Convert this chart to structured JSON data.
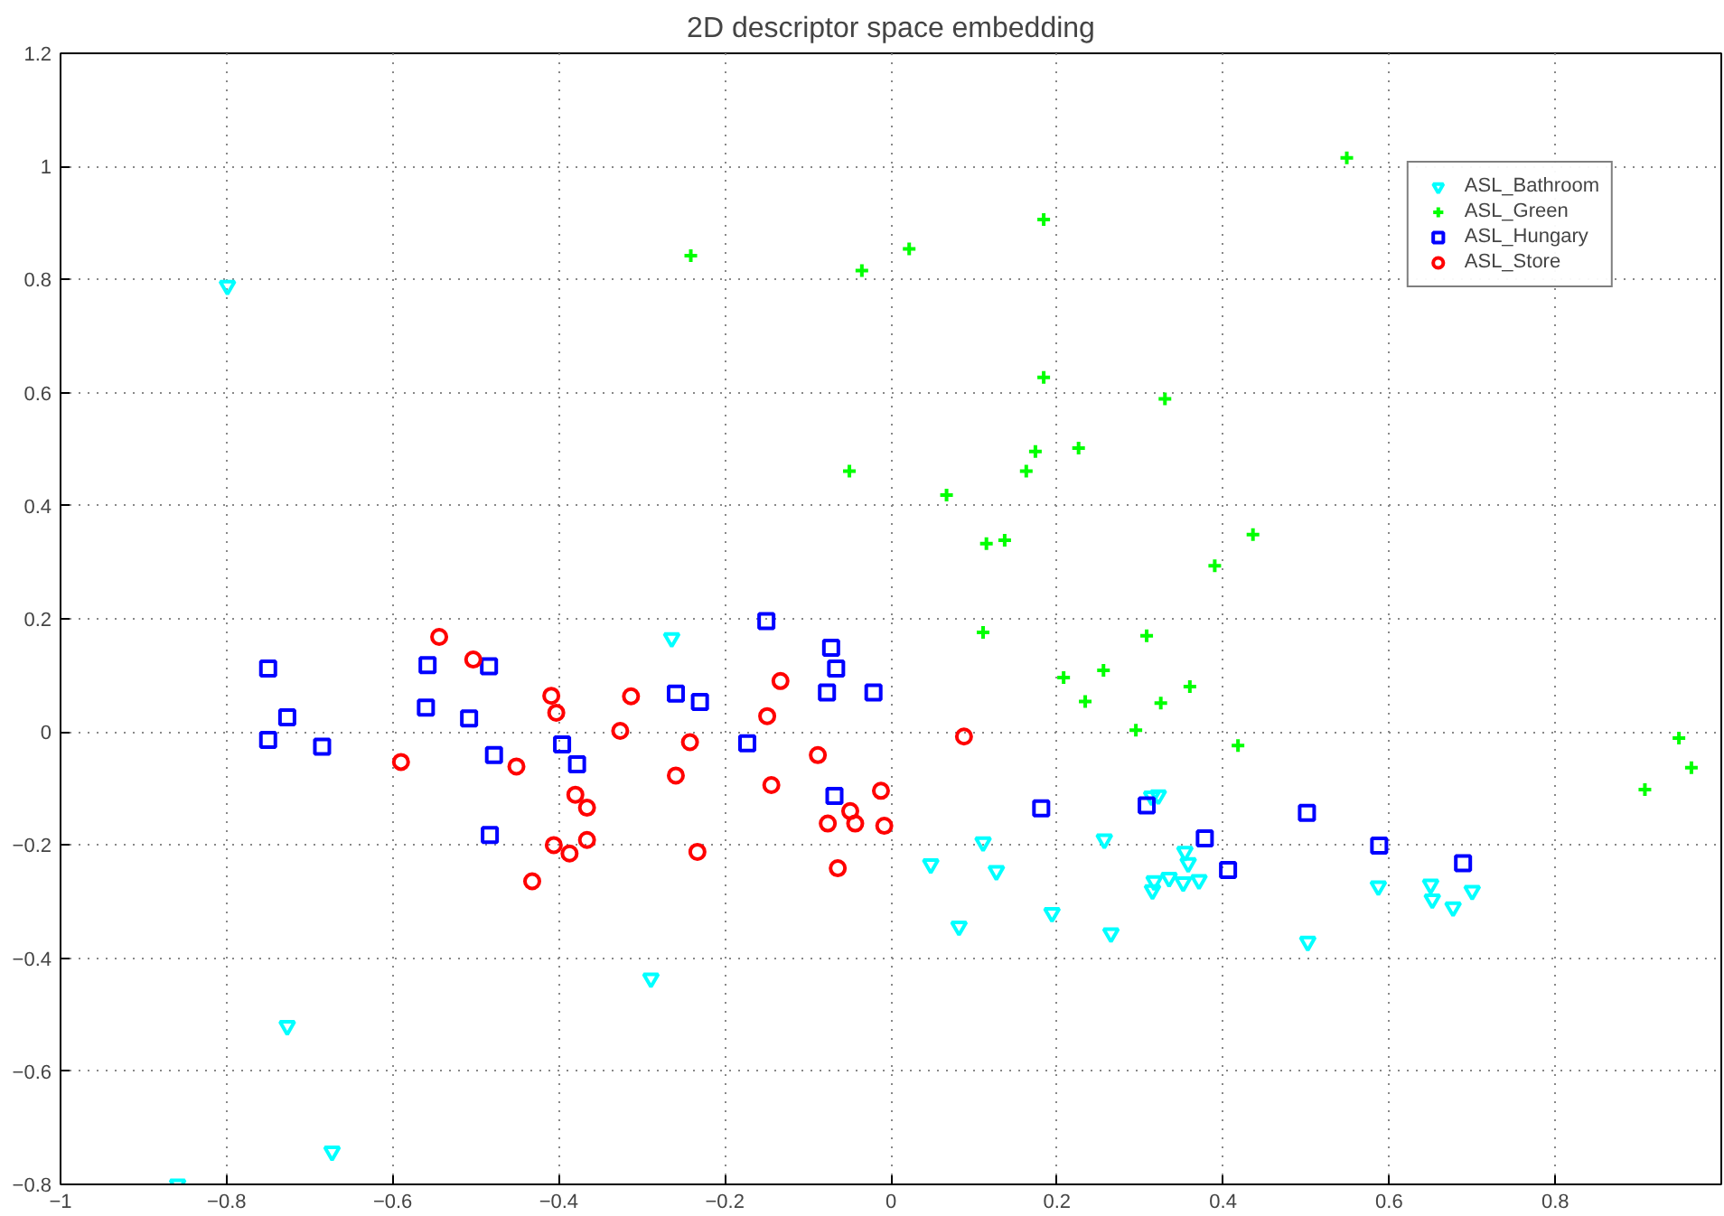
{
  "chart_data": {
    "type": "scatter",
    "title": "2D descriptor space embedding",
    "xlim": [
      -1,
      1
    ],
    "ylim": [
      -0.8,
      1.2
    ],
    "xticks": [
      -1,
      -0.8,
      -0.6,
      -0.4,
      -0.2,
      0,
      0.2,
      0.4,
      0.6,
      0.8
    ],
    "yticks": [
      -0.8,
      -0.6,
      -0.4,
      -0.2,
      0,
      0.2,
      0.4,
      0.6,
      0.8,
      1,
      1.2
    ],
    "grid": true,
    "legend": "top right",
    "series": [
      {
        "name": "ASL_Bathroom",
        "color": "#00ffff",
        "marker": "triangle",
        "x": [
          -0.799,
          -0.264,
          -0.289,
          -0.727,
          -0.673,
          -0.859,
          0.048,
          0.111,
          0.127,
          0.082,
          0.194,
          0.257,
          0.265,
          0.314,
          0.322,
          0.354,
          0.358,
          0.317,
          0.315,
          0.335,
          0.352,
          0.371,
          0.502,
          0.587,
          0.65,
          0.652,
          0.677,
          0.7
        ],
        "values": [
          0.789,
          0.166,
          -0.436,
          -0.52,
          -0.742,
          -0.8,
          -0.234,
          -0.195,
          -0.246,
          -0.344,
          -0.32,
          -0.19,
          -0.356,
          -0.114,
          -0.112,
          -0.212,
          -0.232,
          -0.264,
          -0.28,
          -0.258,
          -0.266,
          -0.262,
          -0.371,
          -0.273,
          -0.27,
          -0.296,
          -0.31,
          -0.281
        ]
      },
      {
        "name": "ASL_Green",
        "color": "#00ff00",
        "marker": "cross",
        "x": [
          -0.241,
          -0.035,
          0.022,
          0.184,
          0.184,
          0.33,
          0.174,
          0.226,
          0.163,
          -0.05,
          0.067,
          0.115,
          0.137,
          0.436,
          0.39,
          0.111,
          0.308,
          0.256,
          0.208,
          0.36,
          0.234,
          0.325,
          0.295,
          0.418,
          0.549,
          0.949,
          0.964,
          0.908
        ],
        "values": [
          0.842,
          0.816,
          0.854,
          0.906,
          0.627,
          0.589,
          0.496,
          0.502,
          0.461,
          0.461,
          0.419,
          0.333,
          0.339,
          0.349,
          0.294,
          0.176,
          0.17,
          0.109,
          0.096,
          0.08,
          0.054,
          0.051,
          0.003,
          -0.024,
          1.015,
          -0.011,
          -0.063,
          -0.102
        ]
      },
      {
        "name": "ASL_Hungary",
        "color": "#0000ff",
        "marker": "square",
        "x": [
          -0.75,
          -0.727,
          -0.75,
          -0.685,
          -0.558,
          -0.56,
          -0.508,
          -0.484,
          -0.478,
          -0.483,
          -0.396,
          -0.378,
          -0.259,
          -0.23,
          -0.173,
          -0.15,
          -0.072,
          -0.066,
          -0.077,
          -0.021,
          -0.068,
          0.181,
          0.308,
          0.378,
          0.406,
          0.501,
          0.588,
          0.689
        ],
        "values": [
          0.112,
          0.026,
          -0.014,
          -0.026,
          0.118,
          0.043,
          0.024,
          0.116,
          -0.041,
          -0.182,
          -0.022,
          -0.057,
          0.068,
          0.053,
          -0.02,
          0.196,
          0.149,
          0.112,
          0.07,
          0.07,
          -0.113,
          -0.135,
          -0.13,
          -0.188,
          -0.244,
          -0.143,
          -0.201,
          -0.232
        ]
      },
      {
        "name": "ASL_Store",
        "color": "#ff0000",
        "marker": "circle",
        "x": [
          -0.544,
          -0.503,
          -0.409,
          -0.403,
          -0.313,
          -0.326,
          -0.242,
          -0.259,
          -0.59,
          -0.451,
          -0.38,
          -0.366,
          -0.406,
          -0.387,
          -0.366,
          -0.233,
          -0.432,
          -0.133,
          -0.149,
          -0.088,
          -0.144,
          -0.012,
          -0.049,
          -0.076,
          -0.043,
          -0.008,
          -0.064,
          0.088
        ],
        "values": [
          0.168,
          0.128,
          0.064,
          0.034,
          0.063,
          0.002,
          -0.018,
          -0.077,
          -0.053,
          -0.061,
          -0.111,
          -0.134,
          -0.2,
          -0.215,
          -0.191,
          -0.212,
          -0.264,
          0.09,
          0.028,
          -0.041,
          -0.094,
          -0.104,
          -0.14,
          -0.162,
          -0.162,
          -0.166,
          -0.241,
          -0.008
        ]
      }
    ]
  }
}
